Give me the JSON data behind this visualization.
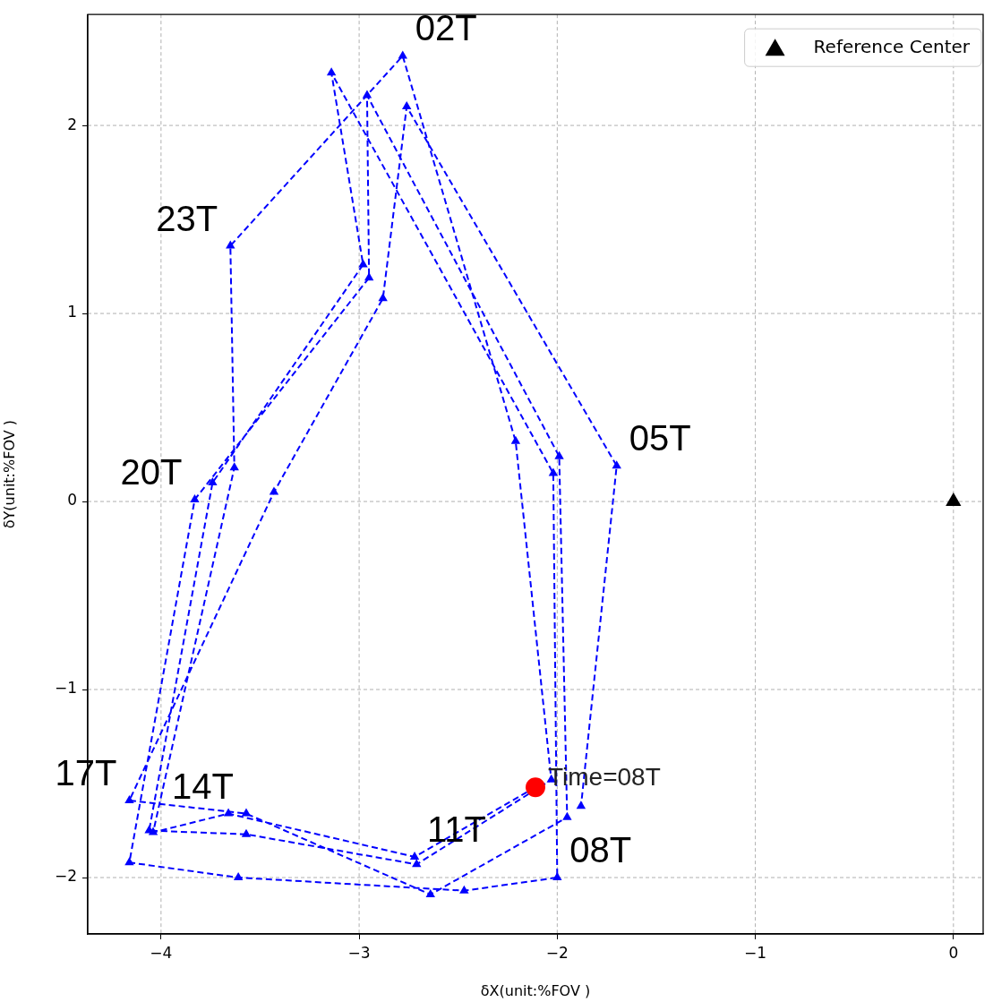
{
  "chart_data": {
    "type": "line",
    "xlabel": "δX(unit:%FOV )",
    "ylabel": "δY(unit:%FOV )",
    "xlim": [
      -4.37,
      0.15
    ],
    "ylim": [
      -2.3,
      2.59
    ],
    "xticks": [
      {
        "value": -4,
        "label": "−4"
      },
      {
        "value": -3,
        "label": "−3"
      },
      {
        "value": -2,
        "label": "−2"
      },
      {
        "value": -1,
        "label": "−1"
      },
      0
    ],
    "yticks": [
      {
        "value": -2,
        "label": "−2"
      },
      {
        "value": -1,
        "label": "−1"
      },
      0,
      1,
      2
    ],
    "grid": true,
    "legend": "top right",
    "series": [
      {
        "color": "#0000ff",
        "marker": "triangle",
        "line_style": "dashed",
        "x": [
          -2.11,
          -2.72,
          -3.66,
          -4.04,
          -3.63,
          -3.65,
          -2.78,
          -2.21,
          -2.03,
          -2.71,
          -3.57,
          -4.06,
          -3.74,
          -2.98,
          -3.14,
          -2.02,
          -2.0,
          -2.47,
          -3.61,
          -4.16,
          -3.83,
          -2.95,
          -2.96,
          -1.99,
          -1.95,
          -2.64,
          -3.57,
          -4.16,
          -3.43,
          -2.88,
          -2.76,
          -1.7,
          -1.88
        ],
        "values": [
          -1.52,
          -1.89,
          -1.66,
          -1.76,
          0.18,
          1.36,
          2.37,
          0.32,
          -1.48,
          -1.93,
          -1.77,
          -1.75,
          0.1,
          1.26,
          2.28,
          0.15,
          -2.0,
          -2.07,
          -2.0,
          -1.92,
          0.01,
          1.19,
          2.16,
          0.24,
          -1.68,
          -2.09,
          -1.66,
          -1.59,
          0.05,
          1.08,
          2.1,
          0.19,
          -1.62
        ]
      },
      {
        "type": "scatter",
        "color": "#ff0000",
        "marker": "circle",
        "x": [
          -2.11
        ],
        "values": [
          -1.52
        ]
      },
      {
        "type": "scatter",
        "name": "Reference Center",
        "color": "#000000",
        "marker": "triangle",
        "x": [
          0
        ],
        "values": [
          0
        ]
      }
    ],
    "annotations": [
      {
        "text": "02T",
        "x": -2.78,
        "y": 2.37
      },
      {
        "text": "23T",
        "x": -3.65,
        "y": 1.36
      },
      {
        "text": "20T",
        "x": -3.83,
        "y": 0.01
      },
      {
        "text": "05T",
        "x": -1.7,
        "y": 0.19
      },
      {
        "text": "17T",
        "x": -4.16,
        "y": -1.59
      },
      {
        "text": "14T",
        "x": -3.57,
        "y": -1.66
      },
      {
        "text": "11T",
        "x": -2.72,
        "y": -1.89
      },
      {
        "text": "08T",
        "x": -2.0,
        "y": -2.0
      },
      {
        "text": "Time=08T",
        "x": -2.11,
        "y": -1.52
      }
    ]
  }
}
